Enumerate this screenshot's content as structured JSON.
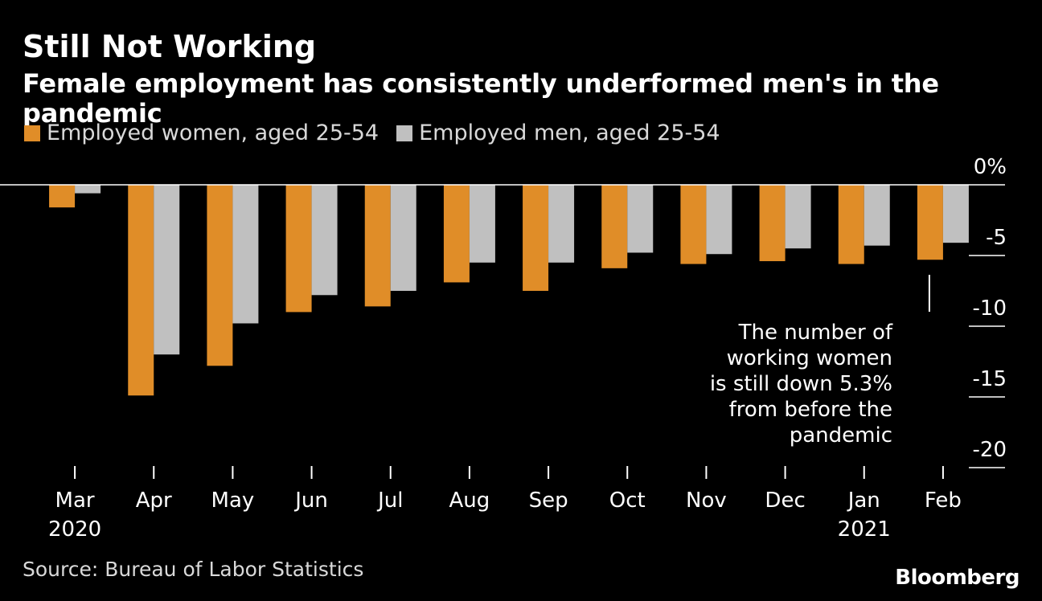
{
  "chart_data": {
    "type": "bar",
    "title": "Still Not Working",
    "subtitle": "Female employment has consistently underformed men's in the pandemic",
    "categories": [
      "Mar",
      "Apr",
      "May",
      "Jun",
      "Jul",
      "Aug",
      "Sep",
      "Oct",
      "Nov",
      "Dec",
      "Jan",
      "Feb"
    ],
    "year_labels": [
      "2020",
      "",
      "",
      "",
      "",
      "",
      "",
      "",
      "",
      "",
      "2021",
      ""
    ],
    "series": [
      {
        "name": "Employed women, aged 25-54",
        "color": "#e08d28",
        "values": [
          -1.6,
          -14.9,
          -12.8,
          -9.0,
          -8.6,
          -6.9,
          -7.5,
          -5.9,
          -5.6,
          -5.4,
          -5.6,
          -5.3
        ]
      },
      {
        "name": "Employed men, aged 25-54",
        "color": "#c0c0c0",
        "values": [
          -0.6,
          -12.0,
          -9.8,
          -7.8,
          -7.5,
          -5.5,
          -5.5,
          -4.8,
          -4.9,
          -4.5,
          -4.3,
          -4.1
        ]
      }
    ],
    "yticks": [
      {
        "value": 0,
        "label": "0%"
      },
      {
        "value": -5,
        "label": "-5"
      },
      {
        "value": -10,
        "label": "-10"
      },
      {
        "value": -15,
        "label": "-15"
      },
      {
        "value": -20,
        "label": "-20"
      }
    ],
    "ylim": [
      -20,
      0
    ],
    "annotation": {
      "lines": [
        "The number of",
        "working women",
        "is still down 5.3%",
        "from before the",
        "pandemic"
      ],
      "category": "Feb"
    }
  },
  "source": "Source: Bureau of Labor Statistics",
  "brand": "Bloomberg"
}
